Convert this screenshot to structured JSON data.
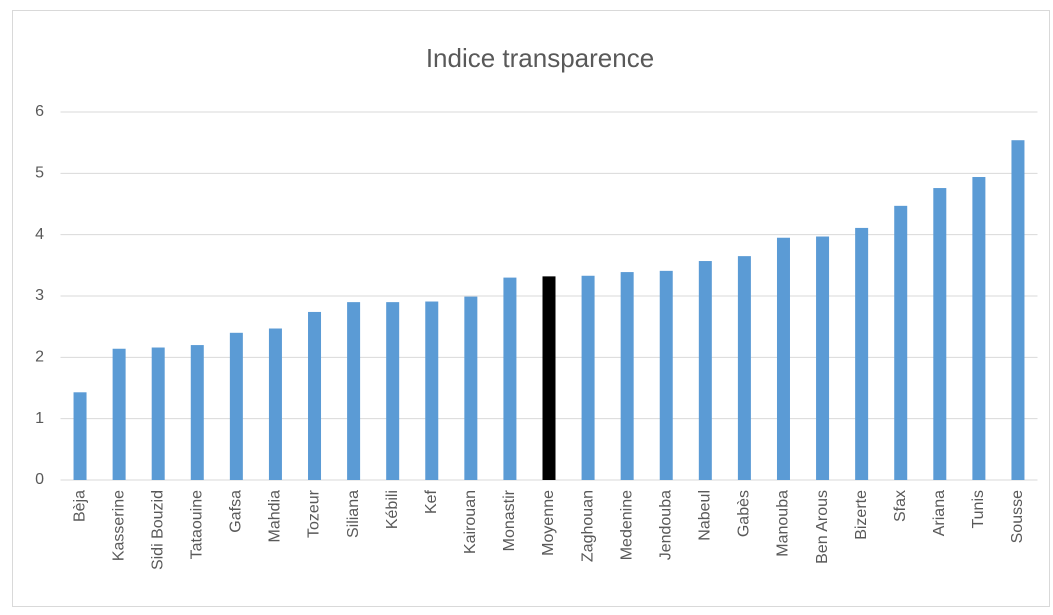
{
  "chart_data": {
    "type": "bar",
    "title": "Indice transparence",
    "categories": [
      "Bèja",
      "Kasserine",
      "Sidi Bouzid",
      "Tataouine",
      "Gafsa",
      "Mahdia",
      "Tozeur",
      "Siliana",
      "Kébili",
      "Kef",
      "Kairouan",
      "Monastir",
      "Moyenne",
      "Zaghouan",
      "Medenine",
      "Jendouba",
      "Nabeul",
      "Gabès",
      "Manouba",
      "Ben Arous",
      "Bizerte",
      "Sfax",
      "Ariana",
      "Tunis",
      "Sousse"
    ],
    "values": [
      1.43,
      2.14,
      2.16,
      2.2,
      2.4,
      2.47,
      2.74,
      2.9,
      2.9,
      2.91,
      2.99,
      3.3,
      3.32,
      3.33,
      3.39,
      3.41,
      3.57,
      3.65,
      3.95,
      3.97,
      4.11,
      4.47,
      4.76,
      4.94,
      5.54
    ],
    "colors": [
      "#5b9bd5",
      "#5b9bd5",
      "#5b9bd5",
      "#5b9bd5",
      "#5b9bd5",
      "#5b9bd5",
      "#5b9bd5",
      "#5b9bd5",
      "#5b9bd5",
      "#5b9bd5",
      "#5b9bd5",
      "#5b9bd5",
      "#000000",
      "#5b9bd5",
      "#5b9bd5",
      "#5b9bd5",
      "#5b9bd5",
      "#5b9bd5",
      "#5b9bd5",
      "#5b9bd5",
      "#5b9bd5",
      "#5b9bd5",
      "#5b9bd5",
      "#5b9bd5",
      "#5b9bd5"
    ],
    "ylim": [
      0,
      6
    ],
    "yticks": [
      0,
      1,
      2,
      3,
      4,
      5,
      6
    ],
    "grid": true
  }
}
